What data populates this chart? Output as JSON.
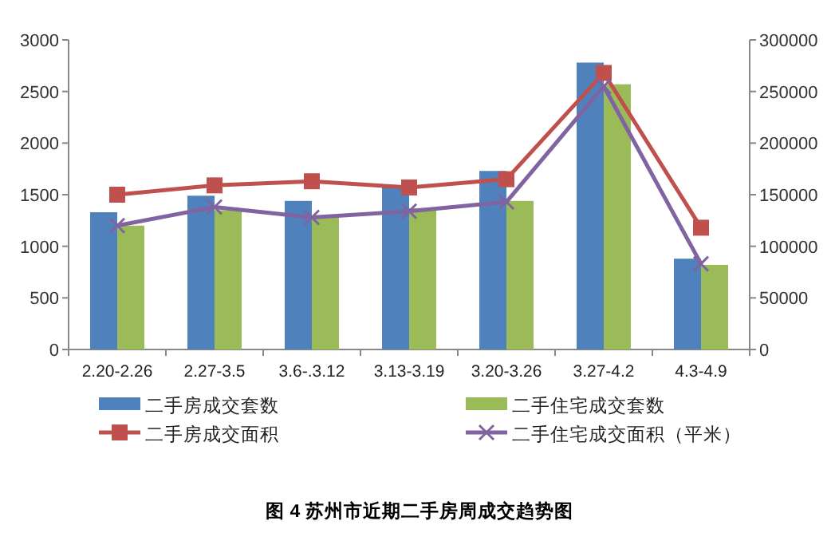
{
  "chart_data": {
    "type": "bar",
    "title": "图 4 苏州市近期二手房周成交趋势图",
    "categories": [
      "2.20-2.26",
      "2.27-3.5",
      "3.6-.3.12",
      "3.13-3.19",
      "3.20-3.26",
      "3.27-4.2",
      "4.3-4.9"
    ],
    "series": [
      {
        "name": "二手房成交套数",
        "color": "#4f81bd",
        "values": [
          1330,
          1490,
          1440,
          1570,
          1730,
          2780,
          880
        ]
      },
      {
        "name": "二手住宅成交套数",
        "color": "#9bbb59",
        "values": [
          1200,
          1350,
          1300,
          1370,
          1440,
          2570,
          820
        ]
      },
      {
        "name": "二手房成交面积",
        "type": "line",
        "axis": "y2",
        "marker": "square",
        "color": "#c0504d",
        "values": [
          150000,
          159000,
          163000,
          157000,
          165000,
          268000,
          118000
        ]
      },
      {
        "name": "二手住宅成交面积（平米）",
        "type": "line",
        "axis": "y2",
        "marker": "cross",
        "color": "#8064a2",
        "values": [
          120000,
          138000,
          128000,
          134000,
          143000,
          255000,
          83000
        ]
      }
    ],
    "ylim": [
      0,
      3000
    ],
    "yticks": [
      0,
      500,
      1000,
      1500,
      2000,
      2500,
      3000
    ],
    "y2lim": [
      0,
      300000
    ],
    "y2ticks": [
      0,
      50000,
      100000,
      150000,
      200000,
      250000,
      300000
    ],
    "legend": "bottom",
    "grid": false
  }
}
